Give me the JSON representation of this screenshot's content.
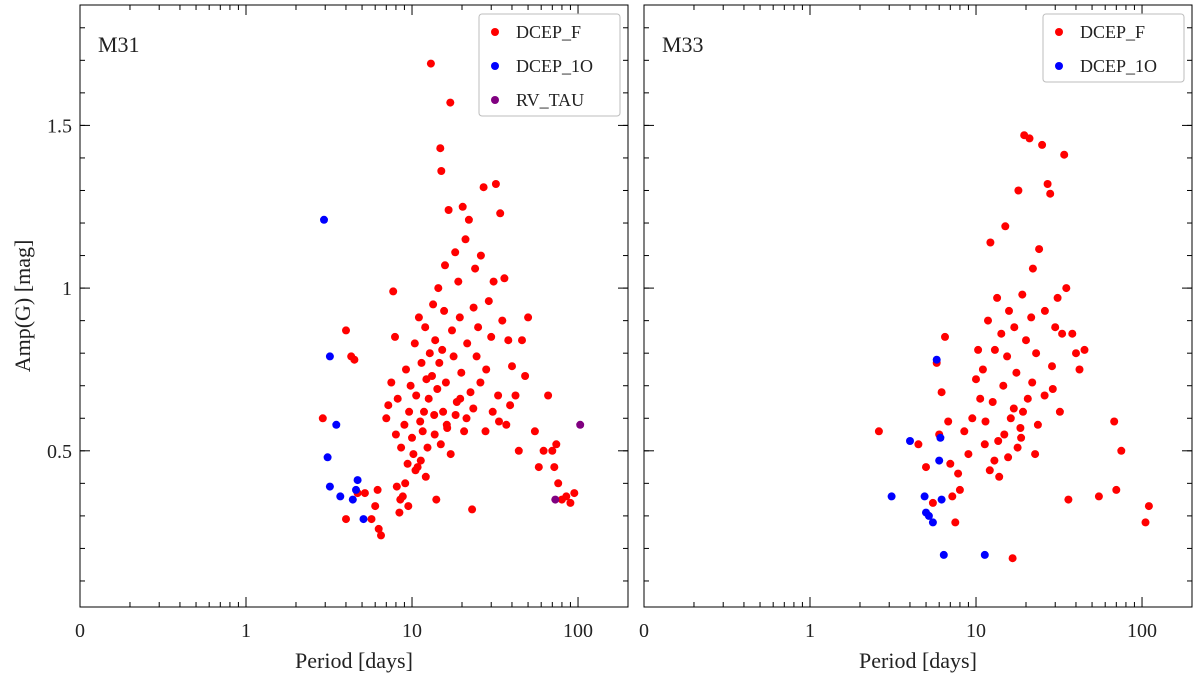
{
  "colors": {
    "DCEP_F": "#ff0000",
    "DCEP_1O": "#0000ff",
    "RV_TAU": "#800080"
  },
  "chart_data": [
    {
      "type": "scatter",
      "title": "M31",
      "xlabel": "Period  [days]",
      "ylabel": "Amp(G)  [mag]",
      "xscale": "log",
      "xlim": [
        0.1,
        200
      ],
      "ylim": [
        0.02,
        1.87
      ],
      "xticks": [
        {
          "value": 0.1,
          "label": "0"
        },
        {
          "value": 1,
          "label": "1"
        },
        {
          "value": 10,
          "label": "10"
        },
        {
          "value": 100,
          "label": "100"
        }
      ],
      "yticks": [
        {
          "value": 0.5,
          "label": "0.5"
        },
        {
          "value": 1,
          "label": "1"
        },
        {
          "value": 1.5,
          "label": "1.5"
        }
      ],
      "legend_position": "top-right",
      "series": [
        {
          "name": "DCEP_F",
          "points": [
            [
              2.9,
              0.6
            ],
            [
              4,
              0.87
            ],
            [
              4.3,
              0.79
            ],
            [
              4.5,
              0.78
            ],
            [
              4,
              0.29
            ],
            [
              4.7,
              0.37
            ],
            [
              5.2,
              0.37
            ],
            [
              5.7,
              0.29
            ],
            [
              6,
              0.33
            ],
            [
              6.3,
              0.26
            ],
            [
              6.5,
              0.24
            ],
            [
              6.2,
              0.38
            ],
            [
              7,
              0.6
            ],
            [
              7.2,
              0.64
            ],
            [
              7.5,
              0.71
            ],
            [
              7.7,
              0.99
            ],
            [
              7.9,
              0.85
            ],
            [
              8,
              0.55
            ],
            [
              8.2,
              0.66
            ],
            [
              8.4,
              0.31
            ],
            [
              8.6,
              0.51
            ],
            [
              8.8,
              0.36
            ],
            [
              9,
              0.58
            ],
            [
              9.2,
              0.75
            ],
            [
              9.4,
              0.46
            ],
            [
              9.6,
              0.62
            ],
            [
              9.8,
              0.7
            ],
            [
              10,
              0.54
            ],
            [
              10.2,
              0.49
            ],
            [
              10.4,
              0.83
            ],
            [
              10.6,
              0.67
            ],
            [
              10.8,
              0.45
            ],
            [
              11,
              0.91
            ],
            [
              11.2,
              0.59
            ],
            [
              11.4,
              0.77
            ],
            [
              11.6,
              0.56
            ],
            [
              11.8,
              0.62
            ],
            [
              12,
              0.88
            ],
            [
              12.2,
              0.72
            ],
            [
              12.4,
              0.51
            ],
            [
              12.6,
              0.66
            ],
            [
              12.8,
              0.8
            ],
            [
              13,
              1.69
            ],
            [
              13.2,
              0.73
            ],
            [
              13.4,
              0.95
            ],
            [
              13.6,
              0.61
            ],
            [
              13.8,
              0.84
            ],
            [
              14,
              0.35
            ],
            [
              14.2,
              0.69
            ],
            [
              14.4,
              1.0
            ],
            [
              14.6,
              0.77
            ],
            [
              14.8,
              1.43
            ],
            [
              15,
              1.36
            ],
            [
              15.2,
              0.81
            ],
            [
              15.4,
              0.62
            ],
            [
              15.6,
              0.93
            ],
            [
              15.8,
              1.07
            ],
            [
              16,
              0.71
            ],
            [
              16.3,
              0.57
            ],
            [
              16.6,
              1.24
            ],
            [
              17,
              1.57
            ],
            [
              17.4,
              0.87
            ],
            [
              17.8,
              0.79
            ],
            [
              18.2,
              1.11
            ],
            [
              18.6,
              0.65
            ],
            [
              19,
              1.02
            ],
            [
              19.4,
              0.91
            ],
            [
              19.8,
              0.74
            ],
            [
              20.2,
              1.25
            ],
            [
              20.6,
              0.56
            ],
            [
              21,
              1.15
            ],
            [
              21.5,
              0.83
            ],
            [
              22,
              1.21
            ],
            [
              22.5,
              0.68
            ],
            [
              23,
              0.32
            ],
            [
              23.5,
              0.94
            ],
            [
              24,
              1.06
            ],
            [
              24.5,
              0.79
            ],
            [
              25,
              0.88
            ],
            [
              26,
              1.1
            ],
            [
              27,
              1.31
            ],
            [
              28,
              0.75
            ],
            [
              29,
              0.96
            ],
            [
              30,
              0.85
            ],
            [
              31,
              1.02
            ],
            [
              32,
              1.32
            ],
            [
              33,
              0.67
            ],
            [
              34,
              1.23
            ],
            [
              35,
              0.9
            ],
            [
              36,
              1.03
            ],
            [
              37,
              0.58
            ],
            [
              38,
              0.84
            ],
            [
              40,
              0.76
            ],
            [
              42,
              0.67
            ],
            [
              44,
              0.5
            ],
            [
              46,
              0.84
            ],
            [
              48,
              0.73
            ],
            [
              50,
              0.91
            ],
            [
              55,
              0.56
            ],
            [
              58,
              0.45
            ],
            [
              62,
              0.5
            ],
            [
              66,
              0.67
            ],
            [
              70,
              0.5
            ],
            [
              72,
              0.45
            ],
            [
              74,
              0.52
            ],
            [
              76,
              0.4
            ],
            [
              80,
              0.35
            ],
            [
              85,
              0.36
            ],
            [
              90,
              0.34
            ],
            [
              95,
              0.37
            ],
            [
              8.1,
              0.39
            ],
            [
              8.5,
              0.35
            ],
            [
              9.1,
              0.4
            ],
            [
              9.5,
              0.33
            ],
            [
              10.5,
              0.44
            ],
            [
              11.3,
              0.47
            ],
            [
              12.1,
              0.42
            ],
            [
              13.7,
              0.55
            ],
            [
              14.9,
              0.52
            ],
            [
              16.2,
              0.58
            ],
            [
              17.1,
              0.49
            ],
            [
              18.3,
              0.61
            ],
            [
              19.5,
              0.66
            ],
            [
              21.3,
              0.6
            ],
            [
              23.4,
              0.63
            ],
            [
              25.8,
              0.71
            ],
            [
              27.7,
              0.56
            ],
            [
              30.6,
              0.62
            ],
            [
              33.4,
              0.59
            ],
            [
              39,
              0.64
            ]
          ]
        },
        {
          "name": "DCEP_1O",
          "points": [
            [
              2.95,
              1.21
            ],
            [
              3.2,
              0.79
            ],
            [
              3.5,
              0.58
            ],
            [
              3.1,
              0.48
            ],
            [
              3.2,
              0.39
            ],
            [
              3.7,
              0.36
            ],
            [
              4.4,
              0.35
            ],
            [
              4.7,
              0.41
            ],
            [
              4.6,
              0.38
            ],
            [
              5.1,
              0.29
            ]
          ]
        },
        {
          "name": "RV_TAU",
          "points": [
            [
              103,
              0.58
            ],
            [
              73,
              0.35
            ]
          ]
        }
      ]
    },
    {
      "type": "scatter",
      "title": "M33",
      "xlabel": "Period  [days]",
      "ylabel": "",
      "xscale": "log",
      "xlim": [
        0.1,
        200
      ],
      "ylim": [
        0.02,
        1.87
      ],
      "xticks": [
        {
          "value": 0.1,
          "label": "0"
        },
        {
          "value": 1,
          "label": "1"
        },
        {
          "value": 10,
          "label": "10"
        },
        {
          "value": 100,
          "label": "100"
        }
      ],
      "yticks": [
        {
          "value": 0.5,
          "label": ""
        },
        {
          "value": 1,
          "label": ""
        },
        {
          "value": 1.5,
          "label": ""
        }
      ],
      "legend_position": "top-right",
      "series": [
        {
          "name": "DCEP_F",
          "points": [
            [
              2.6,
              0.56
            ],
            [
              4.5,
              0.52
            ],
            [
              5,
              0.45
            ],
            [
              5.5,
              0.34
            ],
            [
              5.8,
              0.77
            ],
            [
              6,
              0.55
            ],
            [
              6.2,
              0.68
            ],
            [
              6.5,
              0.85
            ],
            [
              6.8,
              0.59
            ],
            [
              7,
              0.46
            ],
            [
              7.2,
              0.36
            ],
            [
              7.5,
              0.28
            ],
            [
              7.8,
              0.43
            ],
            [
              8,
              0.38
            ],
            [
              8.5,
              0.56
            ],
            [
              9,
              0.49
            ],
            [
              9.5,
              0.6
            ],
            [
              10,
              0.72
            ],
            [
              10.3,
              0.81
            ],
            [
              10.6,
              0.66
            ],
            [
              11,
              0.75
            ],
            [
              11.4,
              0.59
            ],
            [
              11.8,
              0.9
            ],
            [
              12.2,
              1.14
            ],
            [
              12.6,
              0.65
            ],
            [
              13,
              0.81
            ],
            [
              13.4,
              0.97
            ],
            [
              13.8,
              0.42
            ],
            [
              14.2,
              0.86
            ],
            [
              14.6,
              0.7
            ],
            [
              15,
              1.19
            ],
            [
              15.4,
              0.79
            ],
            [
              15.8,
              0.93
            ],
            [
              16.2,
              0.6
            ],
            [
              16.6,
              0.17
            ],
            [
              17,
              0.88
            ],
            [
              17.5,
              0.74
            ],
            [
              18,
              1.3
            ],
            [
              18.5,
              0.57
            ],
            [
              19,
              0.98
            ],
            [
              19.5,
              1.47
            ],
            [
              20,
              0.84
            ],
            [
              20.5,
              0.66
            ],
            [
              21,
              1.46
            ],
            [
              21.5,
              0.91
            ],
            [
              22,
              1.06
            ],
            [
              23,
              0.8
            ],
            [
              24,
              1.12
            ],
            [
              25,
              1.44
            ],
            [
              26,
              0.93
            ],
            [
              27,
              1.32
            ],
            [
              28,
              1.29
            ],
            [
              29,
              0.69
            ],
            [
              30,
              0.88
            ],
            [
              31,
              0.97
            ],
            [
              32,
              0.62
            ],
            [
              33,
              0.86
            ],
            [
              34,
              1.41
            ],
            [
              35,
              1.0
            ],
            [
              36,
              0.35
            ],
            [
              38,
              0.86
            ],
            [
              40,
              0.8
            ],
            [
              42,
              0.75
            ],
            [
              45,
              0.81
            ],
            [
              55,
              0.36
            ],
            [
              68,
              0.59
            ],
            [
              70,
              0.38
            ],
            [
              75,
              0.5
            ],
            [
              105,
              0.28
            ],
            [
              110,
              0.33
            ],
            [
              12.9,
              0.47
            ],
            [
              13.6,
              0.53
            ],
            [
              14.8,
              0.55
            ],
            [
              16.9,
              0.63
            ],
            [
              17.8,
              0.51
            ],
            [
              19.2,
              0.62
            ],
            [
              21.8,
              0.71
            ],
            [
              23.6,
              0.58
            ],
            [
              25.9,
              0.67
            ],
            [
              28.7,
              0.76
            ],
            [
              11.3,
              0.52
            ],
            [
              12.1,
              0.44
            ],
            [
              15.6,
              0.48
            ],
            [
              18.7,
              0.54
            ],
            [
              22.7,
              0.49
            ]
          ]
        },
        {
          "name": "DCEP_1O",
          "points": [
            [
              3.1,
              0.36
            ],
            [
              4.0,
              0.53
            ],
            [
              4.9,
              0.36
            ],
            [
              5.0,
              0.31
            ],
            [
              5.2,
              0.3
            ],
            [
              5.5,
              0.28
            ],
            [
              5.8,
              0.78
            ],
            [
              6.0,
              0.47
            ],
            [
              6.1,
              0.54
            ],
            [
              6.4,
              0.18
            ],
            [
              11.3,
              0.18
            ],
            [
              6.2,
              0.35
            ]
          ]
        }
      ]
    }
  ]
}
